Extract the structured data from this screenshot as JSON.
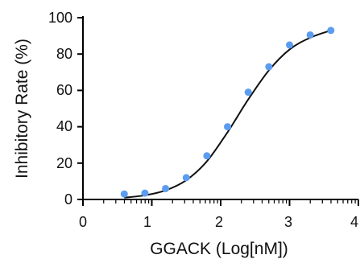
{
  "chart_data": {
    "type": "scatter",
    "xlabel": "GGACK (Log[nM])",
    "ylabel": "Inhibitory Rate (%)",
    "xlim": [
      0,
      4
    ],
    "ylim": [
      0,
      100
    ],
    "xticks": [
      "0",
      "1",
      "2",
      "3",
      "4"
    ],
    "yticks": [
      "0",
      "20",
      "40",
      "60",
      "80",
      "100"
    ],
    "x_minor_ticks": "log-spaced within each decade",
    "grid": false,
    "legend": "none",
    "series": [
      {
        "points": [
          [
            0.6,
            3
          ],
          [
            0.9,
            3.5
          ],
          [
            1.2,
            6
          ],
          [
            1.5,
            12
          ],
          [
            1.8,
            24
          ],
          [
            2.1,
            40
          ],
          [
            2.4,
            59
          ],
          [
            2.7,
            73
          ],
          [
            3.0,
            85
          ],
          [
            3.3,
            90.5
          ],
          [
            3.6,
            93
          ]
        ],
        "color": "#5b9cf0"
      }
    ],
    "fit": {
      "type": "sigmoid",
      "points": [
        [
          0.6,
          1
        ],
        [
          0.9,
          2.3
        ],
        [
          1.2,
          5
        ],
        [
          1.5,
          10.6
        ],
        [
          1.8,
          21
        ],
        [
          2.1,
          37
        ],
        [
          2.25,
          46
        ],
        [
          2.4,
          55
        ],
        [
          2.7,
          71
        ],
        [
          3.0,
          82.5
        ],
        [
          3.3,
          89
        ],
        [
          3.6,
          93
        ]
      ],
      "color": "#111111"
    }
  }
}
